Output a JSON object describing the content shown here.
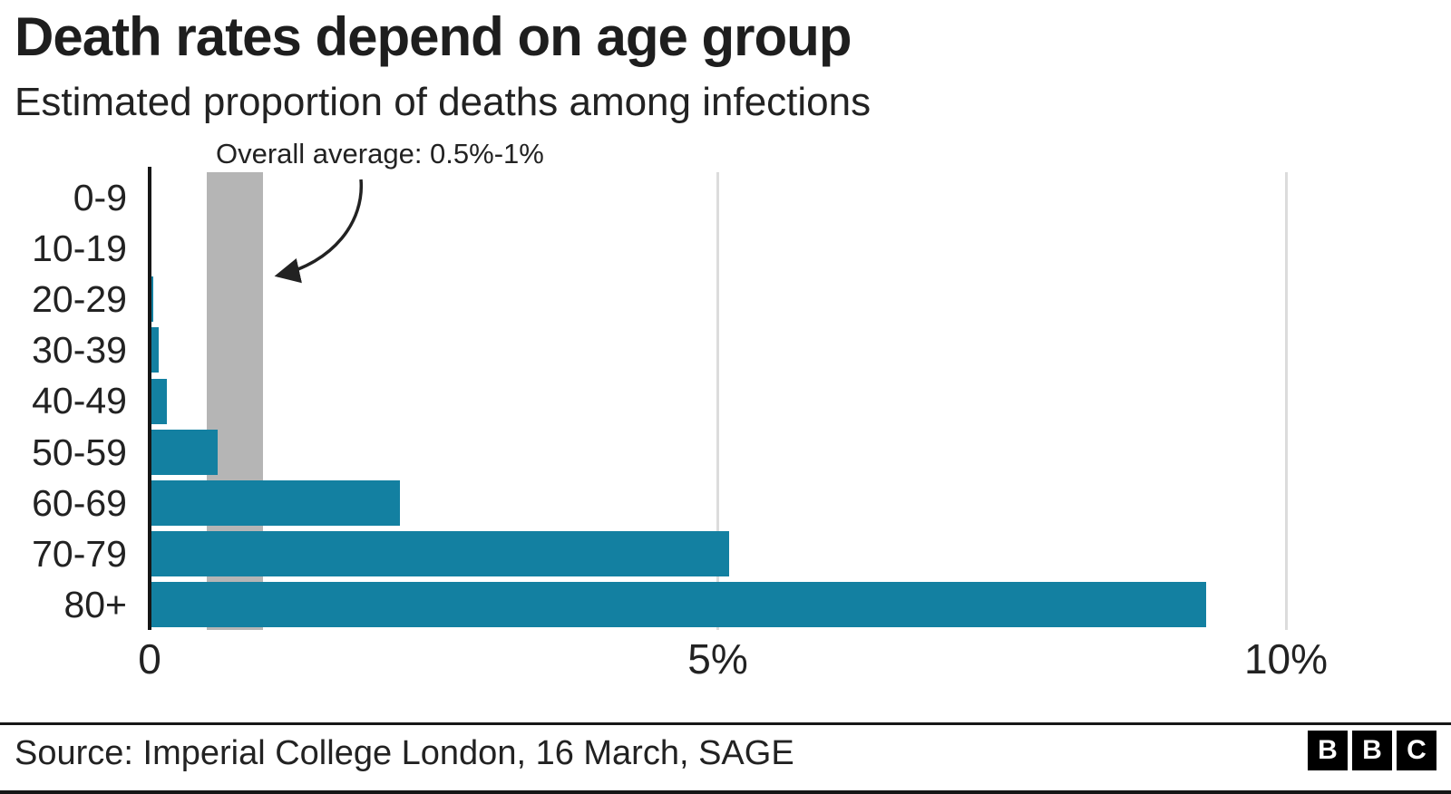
{
  "header": {
    "title": "Death rates depend on age group",
    "subtitle": "Estimated proportion of deaths among infections"
  },
  "chart_data": {
    "type": "bar",
    "orientation": "horizontal",
    "title": "Death rates depend on age group",
    "subtitle": "Estimated proportion of deaths among infections",
    "categories": [
      "0-9",
      "10-19",
      "20-29",
      "30-39",
      "40-49",
      "50-59",
      "60-69",
      "70-79",
      "80+"
    ],
    "values": [
      0.002,
      0.006,
      0.03,
      0.08,
      0.15,
      0.6,
      2.2,
      5.1,
      9.3
    ],
    "unit": "%",
    "xlim": [
      0,
      10.5
    ],
    "grid": true,
    "x_ticks": [
      {
        "value": 0,
        "label": "0"
      },
      {
        "value": 5,
        "label": "5%"
      },
      {
        "value": 10,
        "label": "10%"
      }
    ],
    "band": {
      "from": 0.5,
      "to": 1.0,
      "label": "Overall average: 0.5%-1%",
      "color": "#b5b5b5"
    },
    "bar_color": "#1380A1",
    "gridline_color": "#dcdcdc",
    "axis_color": "#161616"
  },
  "footer": {
    "source": "Source: Imperial College London, 16 March, SAGE",
    "logo_letters": [
      "B",
      "B",
      "C"
    ]
  }
}
